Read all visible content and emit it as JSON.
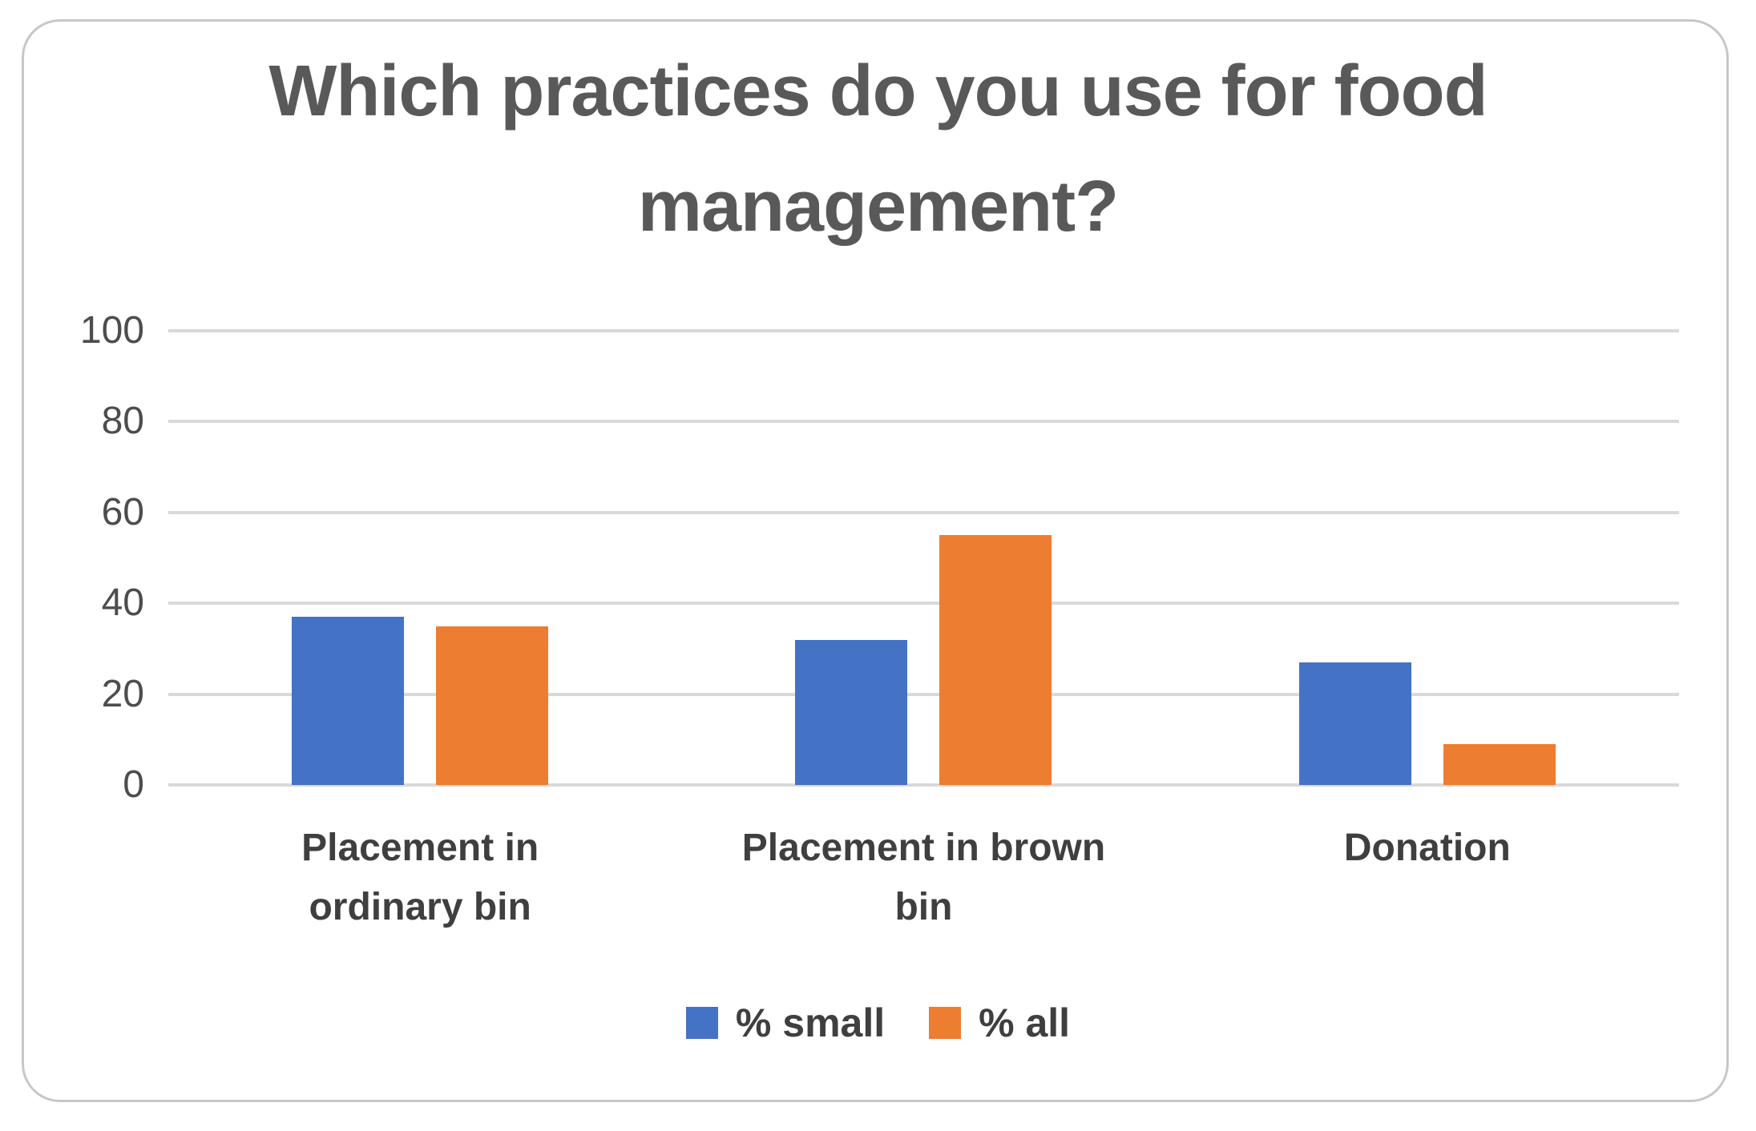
{
  "chart_data": {
    "type": "bar",
    "title": "Which practices do you use for food management?",
    "categories": [
      "Placement in ordinary bin",
      "Placement in brown bin",
      "Donation"
    ],
    "series": [
      {
        "name": "% small",
        "color": "#4472C4",
        "values": [
          37,
          32,
          27
        ]
      },
      {
        "name": "% all",
        "color": "#ED7D31",
        "values": [
          35,
          55,
          9
        ]
      }
    ],
    "xlabel": "",
    "ylabel": "",
    "ylim": [
      0,
      100
    ],
    "y_ticks": [
      0,
      20,
      40,
      60,
      80,
      100
    ],
    "grid": true,
    "legend_position": "bottom",
    "gridline_color": "#d9d9d9",
    "border_color": "#c7c7c7",
    "text_color": "#595959"
  }
}
